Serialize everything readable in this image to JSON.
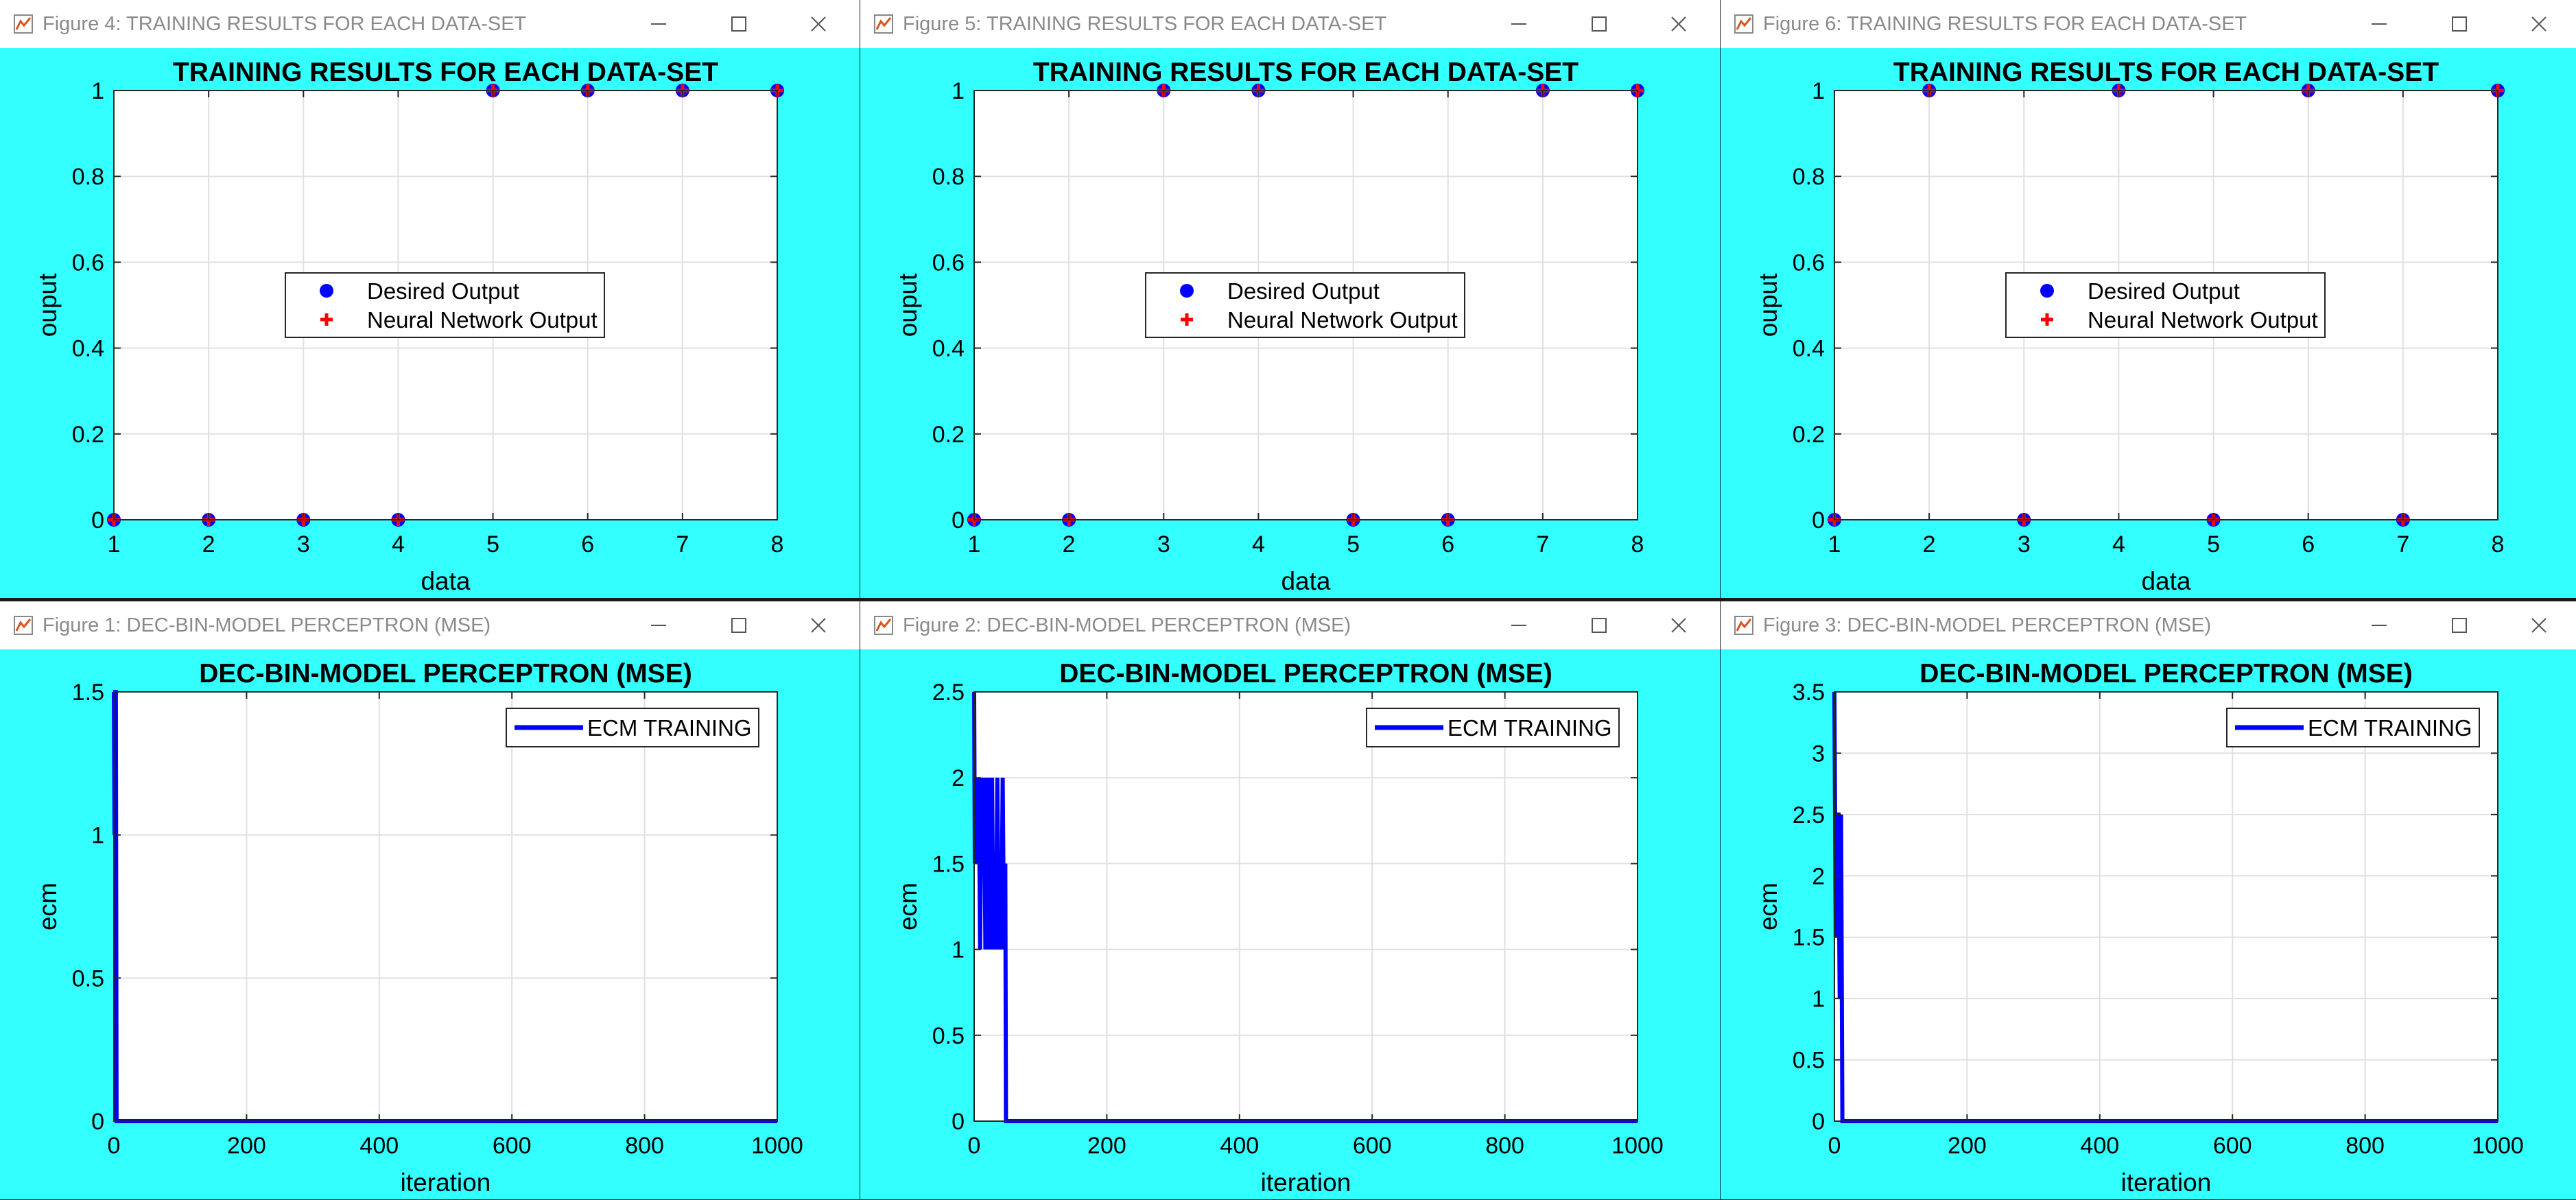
{
  "windows": [
    {
      "title": "Figure 4: TRAINING RESULTS FOR EACH DATA-SET"
    },
    {
      "title": "Figure 5: TRAINING RESULTS FOR EACH DATA-SET"
    },
    {
      "title": "Figure 6: TRAINING RESULTS FOR EACH DATA-SET"
    },
    {
      "title": "Figure 1: DEC-BIN-MODEL PERCEPTRON (MSE)"
    },
    {
      "title": "Figure 2: DEC-BIN-MODEL PERCEPTRON (MSE)"
    },
    {
      "title": "Figure 3: DEC-BIN-MODEL PERCEPTRON (MSE)"
    }
  ],
  "colors": {
    "figure_background": "#33ffff",
    "desired_output": "#0000ff",
    "network_output": "#ff0000",
    "ecm_line": "#0000ff"
  },
  "icons": [
    "matlab-figure-icon",
    "minimize-icon",
    "maximize-icon",
    "close-icon"
  ],
  "chart_data": [
    {
      "type": "scatter",
      "title": "TRAINING RESULTS FOR EACH DATA-SET",
      "xlabel": "data",
      "ylabel": "ouput",
      "xlim": [
        1,
        8
      ],
      "ylim": [
        0,
        1
      ],
      "xticks": [
        "1",
        "2",
        "3",
        "4",
        "5",
        "6",
        "7",
        "8"
      ],
      "yticks": [
        "0",
        "0.2",
        "0.4",
        "0.6",
        "0.8",
        "1"
      ],
      "grid": true,
      "legend_position": "center",
      "series": [
        {
          "name": "Desired Output",
          "marker": "dot",
          "x": [
            1,
            2,
            3,
            4,
            5,
            6,
            7,
            8
          ],
          "y": [
            0,
            0,
            0,
            0,
            1,
            1,
            1,
            1
          ]
        },
        {
          "name": "Neural Network Output",
          "marker": "plus",
          "x": [
            1,
            2,
            3,
            4,
            5,
            6,
            7,
            8
          ],
          "y": [
            0,
            0,
            0,
            0,
            1,
            1,
            1,
            1
          ]
        }
      ]
    },
    {
      "type": "scatter",
      "title": "TRAINING RESULTS FOR EACH DATA-SET",
      "xlabel": "data",
      "ylabel": "ouput",
      "xlim": [
        1,
        8
      ],
      "ylim": [
        0,
        1
      ],
      "xticks": [
        "1",
        "2",
        "3",
        "4",
        "5",
        "6",
        "7",
        "8"
      ],
      "yticks": [
        "0",
        "0.2",
        "0.4",
        "0.6",
        "0.8",
        "1"
      ],
      "grid": true,
      "legend_position": "center",
      "series": [
        {
          "name": "Desired Output",
          "marker": "dot",
          "x": [
            1,
            2,
            3,
            4,
            5,
            6,
            7,
            8
          ],
          "y": [
            0,
            0,
            1,
            1,
            0,
            0,
            1,
            1
          ]
        },
        {
          "name": "Neural Network Output",
          "marker": "plus",
          "x": [
            1,
            2,
            3,
            4,
            5,
            6,
            7,
            8
          ],
          "y": [
            0,
            0,
            1,
            1,
            0,
            0,
            1,
            1
          ]
        }
      ]
    },
    {
      "type": "scatter",
      "title": "TRAINING RESULTS FOR EACH DATA-SET",
      "xlabel": "data",
      "ylabel": "ouput",
      "xlim": [
        1,
        8
      ],
      "ylim": [
        0,
        1
      ],
      "xticks": [
        "1",
        "2",
        "3",
        "4",
        "5",
        "6",
        "7",
        "8"
      ],
      "yticks": [
        "0",
        "0.2",
        "0.4",
        "0.6",
        "0.8",
        "1"
      ],
      "grid": true,
      "legend_position": "center",
      "series": [
        {
          "name": "Desired Output",
          "marker": "dot",
          "x": [
            1,
            2,
            3,
            4,
            5,
            6,
            7,
            8
          ],
          "y": [
            0,
            1,
            0,
            1,
            0,
            1,
            0,
            1
          ]
        },
        {
          "name": "Neural Network Output",
          "marker": "plus",
          "x": [
            1,
            2,
            3,
            4,
            5,
            6,
            7,
            8
          ],
          "y": [
            0,
            1,
            0,
            1,
            0,
            1,
            0,
            1
          ]
        }
      ]
    },
    {
      "type": "line",
      "title": "DEC-BIN-MODEL PERCEPTRON (MSE)",
      "xlabel": "iteration",
      "ylabel": "ecm",
      "xlim": [
        0,
        1000
      ],
      "ylim": [
        0,
        1.5
      ],
      "xticks": [
        "0",
        "200",
        "400",
        "600",
        "800",
        "1000"
      ],
      "yticks": [
        "0",
        "0.5",
        "1",
        "1.5"
      ],
      "grid": true,
      "legend_position": "top-right",
      "series": [
        {
          "name": "ECM TRAINING",
          "x": [
            0,
            1,
            2,
            3,
            4,
            5,
            1000
          ],
          "y": [
            1.5,
            1,
            1.5,
            1.5,
            0,
            0,
            0
          ]
        }
      ]
    },
    {
      "type": "line",
      "title": "DEC-BIN-MODEL PERCEPTRON (MSE)",
      "xlabel": "iteration",
      "ylabel": "ecm",
      "xlim": [
        0,
        1000
      ],
      "ylim": [
        0,
        2.5
      ],
      "xticks": [
        "0",
        "200",
        "400",
        "600",
        "800",
        "1000"
      ],
      "yticks": [
        "0",
        "0.5",
        "1",
        "1.5",
        "2",
        "2.5"
      ],
      "grid": true,
      "legend_position": "top-right",
      "series": [
        {
          "name": "ECM TRAINING",
          "x": [
            0,
            1,
            3,
            5,
            7,
            9,
            11,
            13,
            15,
            17,
            19,
            21,
            23,
            25,
            27,
            29,
            31,
            33,
            35,
            37,
            39,
            41,
            43,
            45,
            47,
            48,
            50,
            1000
          ],
          "y": [
            2.5,
            1.5,
            2,
            1.5,
            2,
            1,
            2,
            1.5,
            2,
            1,
            2,
            1,
            2,
            1,
            2,
            1,
            1.5,
            1,
            2,
            1,
            1.5,
            1,
            2,
            1,
            1.5,
            0,
            0,
            0
          ]
        }
      ]
    },
    {
      "type": "line",
      "title": "DEC-BIN-MODEL PERCEPTRON (MSE)",
      "xlabel": "iteration",
      "ylabel": "ecm",
      "xlim": [
        0,
        1000
      ],
      "ylim": [
        0,
        3.5
      ],
      "xticks": [
        "0",
        "200",
        "400",
        "600",
        "800",
        "1000"
      ],
      "yticks": [
        "0",
        "0.5",
        "1",
        "1.5",
        "2",
        "2.5",
        "3",
        "3.5"
      ],
      "grid": true,
      "legend_position": "top-right",
      "series": [
        {
          "name": "ECM TRAINING",
          "x": [
            0,
            2,
            4,
            6,
            8,
            10,
            12,
            1000
          ],
          "y": [
            3.5,
            1.5,
            2.5,
            2.5,
            1,
            2.5,
            0,
            0
          ]
        }
      ]
    }
  ]
}
